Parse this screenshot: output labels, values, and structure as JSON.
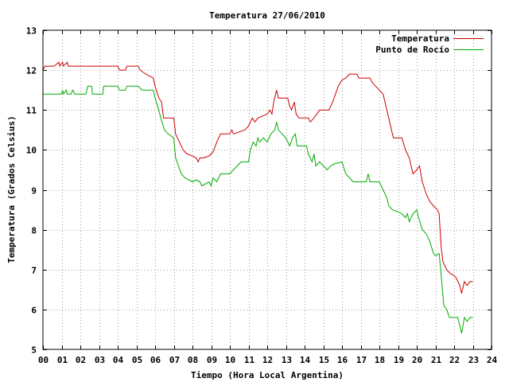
{
  "chart_data": {
    "type": "line",
    "title": "Temperatura 27/06/2010",
    "xlabel": "Tiempo (Hora Local Argentina)",
    "ylabel": "Temperatura (Grados Celsius)",
    "xlim": [
      0,
      24
    ],
    "ylim": [
      5,
      13
    ],
    "grid": true,
    "legend_position": "top-right",
    "x_ticks": [
      "00",
      "01",
      "02",
      "03",
      "04",
      "05",
      "06",
      "07",
      "08",
      "09",
      "10",
      "11",
      "12",
      "13",
      "14",
      "15",
      "16",
      "17",
      "18",
      "19",
      "20",
      "21",
      "22",
      "23",
      "24"
    ],
    "y_ticks": [
      "5",
      "6",
      "7",
      "8",
      "9",
      "10",
      "11",
      "12",
      "13"
    ],
    "series": [
      {
        "name": "Temperatura",
        "color": "#cc0000",
        "points": [
          [
            0,
            12.0
          ],
          [
            0.1,
            12.1
          ],
          [
            0.6,
            12.1
          ],
          [
            0.85,
            12.2
          ],
          [
            0.9,
            12.1
          ],
          [
            1.05,
            12.2
          ],
          [
            1.1,
            12.1
          ],
          [
            1.3,
            12.2
          ],
          [
            1.35,
            12.1
          ],
          [
            4.0,
            12.1
          ],
          [
            4.1,
            12.0
          ],
          [
            4.4,
            12.0
          ],
          [
            4.5,
            12.1
          ],
          [
            5.1,
            12.1
          ],
          [
            5.2,
            12.0
          ],
          [
            5.5,
            11.9
          ],
          [
            5.9,
            11.8
          ],
          [
            6.0,
            11.6
          ],
          [
            6.2,
            11.3
          ],
          [
            6.35,
            11.2
          ],
          [
            6.45,
            10.8
          ],
          [
            7.0,
            10.8
          ],
          [
            7.1,
            10.4
          ],
          [
            7.3,
            10.2
          ],
          [
            7.5,
            10.0
          ],
          [
            7.7,
            9.9
          ],
          [
            8.0,
            9.85
          ],
          [
            8.2,
            9.8
          ],
          [
            8.3,
            9.7
          ],
          [
            8.4,
            9.8
          ],
          [
            8.6,
            9.8
          ],
          [
            8.9,
            9.85
          ],
          [
            9.1,
            9.95
          ],
          [
            9.3,
            10.2
          ],
          [
            9.5,
            10.4
          ],
          [
            10.0,
            10.4
          ],
          [
            10.1,
            10.5
          ],
          [
            10.2,
            10.4
          ],
          [
            10.8,
            10.5
          ],
          [
            11.0,
            10.6
          ],
          [
            11.2,
            10.8
          ],
          [
            11.35,
            10.7
          ],
          [
            11.5,
            10.8
          ],
          [
            12.0,
            10.9
          ],
          [
            12.15,
            11.0
          ],
          [
            12.25,
            10.9
          ],
          [
            12.35,
            11.2
          ],
          [
            12.5,
            11.5
          ],
          [
            12.6,
            11.3
          ],
          [
            13.1,
            11.3
          ],
          [
            13.2,
            11.1
          ],
          [
            13.3,
            11.0
          ],
          [
            13.45,
            11.2
          ],
          [
            13.55,
            10.9
          ],
          [
            13.7,
            10.8
          ],
          [
            14.2,
            10.8
          ],
          [
            14.3,
            10.7
          ],
          [
            14.5,
            10.8
          ],
          [
            14.8,
            11.0
          ],
          [
            15.3,
            11.0
          ],
          [
            15.5,
            11.2
          ],
          [
            15.8,
            11.6
          ],
          [
            16.0,
            11.75
          ],
          [
            16.2,
            11.8
          ],
          [
            16.4,
            11.9
          ],
          [
            16.8,
            11.9
          ],
          [
            16.9,
            11.8
          ],
          [
            17.5,
            11.8
          ],
          [
            17.6,
            11.7
          ],
          [
            17.8,
            11.6
          ],
          [
            18.0,
            11.5
          ],
          [
            18.2,
            11.4
          ],
          [
            18.4,
            11.0
          ],
          [
            18.6,
            10.6
          ],
          [
            18.75,
            10.3
          ],
          [
            19.2,
            10.3
          ],
          [
            19.4,
            10.0
          ],
          [
            19.6,
            9.8
          ],
          [
            19.8,
            9.4
          ],
          [
            20.0,
            9.5
          ],
          [
            20.15,
            9.6
          ],
          [
            20.3,
            9.2
          ],
          [
            20.5,
            8.9
          ],
          [
            20.7,
            8.7
          ],
          [
            20.9,
            8.6
          ],
          [
            21.1,
            8.5
          ],
          [
            21.2,
            8.4
          ],
          [
            21.3,
            7.6
          ],
          [
            21.4,
            7.2
          ],
          [
            21.6,
            7.0
          ],
          [
            21.8,
            6.9
          ],
          [
            22.0,
            6.85
          ],
          [
            22.1,
            6.8
          ],
          [
            22.3,
            6.6
          ],
          [
            22.4,
            6.4
          ],
          [
            22.55,
            6.7
          ],
          [
            22.7,
            6.6
          ],
          [
            22.85,
            6.7
          ],
          [
            23.0,
            6.7
          ]
        ]
      },
      {
        "name": "Punto de Rocío",
        "color": "#00aa00",
        "points": [
          [
            0,
            11.4
          ],
          [
            1.0,
            11.4
          ],
          [
            1.05,
            11.5
          ],
          [
            1.1,
            11.4
          ],
          [
            1.25,
            11.5
          ],
          [
            1.3,
            11.4
          ],
          [
            1.5,
            11.4
          ],
          [
            1.6,
            11.5
          ],
          [
            1.7,
            11.4
          ],
          [
            2.3,
            11.4
          ],
          [
            2.4,
            11.6
          ],
          [
            2.6,
            11.6
          ],
          [
            2.65,
            11.4
          ],
          [
            3.2,
            11.4
          ],
          [
            3.25,
            11.6
          ],
          [
            4.0,
            11.6
          ],
          [
            4.1,
            11.5
          ],
          [
            4.4,
            11.5
          ],
          [
            4.5,
            11.6
          ],
          [
            5.1,
            11.6
          ],
          [
            5.3,
            11.5
          ],
          [
            5.9,
            11.5
          ],
          [
            6.0,
            11.3
          ],
          [
            6.2,
            11.0
          ],
          [
            6.3,
            10.8
          ],
          [
            6.5,
            10.5
          ],
          [
            6.7,
            10.4
          ],
          [
            7.0,
            10.3
          ],
          [
            7.1,
            9.8
          ],
          [
            7.4,
            9.4
          ],
          [
            7.6,
            9.3
          ],
          [
            8.0,
            9.2
          ],
          [
            8.2,
            9.25
          ],
          [
            8.4,
            9.2
          ],
          [
            8.5,
            9.1
          ],
          [
            8.7,
            9.15
          ],
          [
            8.9,
            9.2
          ],
          [
            9.0,
            9.1
          ],
          [
            9.1,
            9.3
          ],
          [
            9.3,
            9.2
          ],
          [
            9.5,
            9.4
          ],
          [
            10.0,
            9.4
          ],
          [
            10.2,
            9.5
          ],
          [
            10.6,
            9.7
          ],
          [
            11.0,
            9.7
          ],
          [
            11.1,
            10.0
          ],
          [
            11.25,
            10.2
          ],
          [
            11.4,
            10.1
          ],
          [
            11.5,
            10.3
          ],
          [
            11.6,
            10.2
          ],
          [
            11.8,
            10.3
          ],
          [
            12.0,
            10.2
          ],
          [
            12.2,
            10.4
          ],
          [
            12.4,
            10.5
          ],
          [
            12.5,
            10.7
          ],
          [
            12.6,
            10.5
          ],
          [
            13.0,
            10.3
          ],
          [
            13.2,
            10.1
          ],
          [
            13.35,
            10.3
          ],
          [
            13.5,
            10.4
          ],
          [
            13.6,
            10.1
          ],
          [
            14.1,
            10.1
          ],
          [
            14.2,
            9.9
          ],
          [
            14.3,
            9.8
          ],
          [
            14.4,
            9.7
          ],
          [
            14.5,
            9.9
          ],
          [
            14.6,
            9.6
          ],
          [
            14.8,
            9.7
          ],
          [
            15.0,
            9.6
          ],
          [
            15.2,
            9.5
          ],
          [
            15.4,
            9.6
          ],
          [
            15.6,
            9.65
          ],
          [
            16.0,
            9.7
          ],
          [
            16.2,
            9.4
          ],
          [
            16.4,
            9.3
          ],
          [
            16.6,
            9.2
          ],
          [
            17.3,
            9.2
          ],
          [
            17.4,
            9.4
          ],
          [
            17.5,
            9.2
          ],
          [
            18.0,
            9.2
          ],
          [
            18.2,
            9.0
          ],
          [
            18.4,
            8.8
          ],
          [
            18.5,
            8.6
          ],
          [
            18.7,
            8.5
          ],
          [
            19.0,
            8.45
          ],
          [
            19.2,
            8.4
          ],
          [
            19.4,
            8.3
          ],
          [
            19.5,
            8.4
          ],
          [
            19.6,
            8.2
          ],
          [
            19.8,
            8.4
          ],
          [
            20.0,
            8.5
          ],
          [
            20.1,
            8.3
          ],
          [
            20.3,
            8.0
          ],
          [
            20.5,
            7.9
          ],
          [
            20.7,
            7.7
          ],
          [
            20.9,
            7.4
          ],
          [
            21.0,
            7.35
          ],
          [
            21.2,
            7.4
          ],
          [
            21.3,
            6.9
          ],
          [
            21.45,
            6.1
          ],
          [
            21.6,
            6.0
          ],
          [
            21.75,
            5.8
          ],
          [
            22.2,
            5.8
          ],
          [
            22.3,
            5.6
          ],
          [
            22.4,
            5.4
          ],
          [
            22.55,
            5.8
          ],
          [
            22.7,
            5.7
          ],
          [
            22.85,
            5.8
          ],
          [
            23.0,
            5.8
          ]
        ]
      }
    ]
  }
}
